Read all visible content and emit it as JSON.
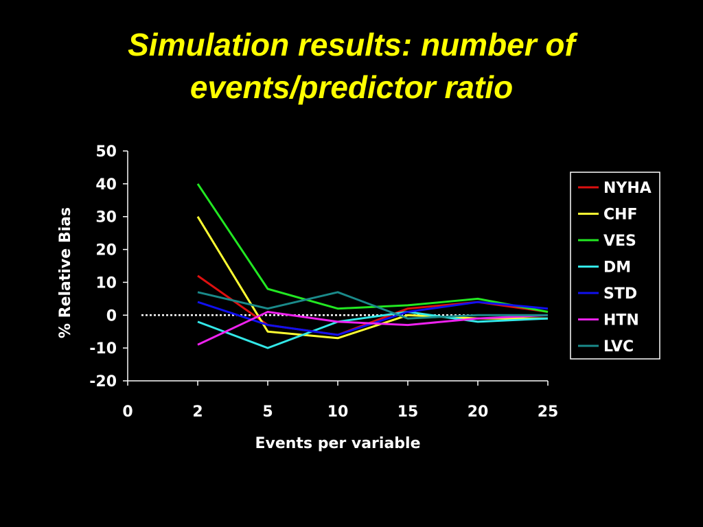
{
  "slide": {
    "title_line1": "Simulation results: number of",
    "title_line2": "events/predictor ratio"
  },
  "chart_data": {
    "type": "line",
    "title": "Simulation results: number of events/predictor ratio",
    "xlabel": "Events per variable",
    "ylabel": "% Relative Bias",
    "categories": [
      "0",
      "2",
      "5",
      "10",
      "15",
      "20",
      "25"
    ],
    "yticks": [
      -20,
      -10,
      0,
      10,
      20,
      30,
      40,
      50
    ],
    "ylim": [
      -20,
      50
    ],
    "grid": false,
    "legend_position": "right",
    "reference_line": {
      "y": 0,
      "style": "dotted",
      "color": "#ffffff"
    },
    "series": [
      {
        "name": "NYHA",
        "color": "#dd1010",
        "values": [
          null,
          12,
          -3,
          -6,
          2,
          4,
          1
        ]
      },
      {
        "name": "CHF",
        "color": "#ffff33",
        "values": [
          null,
          30,
          -5,
          -7,
          0,
          -1,
          -1
        ]
      },
      {
        "name": "VES",
        "color": "#22e822",
        "values": [
          null,
          40,
          8,
          2,
          3,
          5,
          1
        ]
      },
      {
        "name": "DM",
        "color": "#33e8e8",
        "values": [
          null,
          -2,
          -10,
          -2,
          1,
          -2,
          -1
        ]
      },
      {
        "name": "STD",
        "color": "#1010ee",
        "values": [
          null,
          4,
          -3,
          -6,
          1,
          4,
          2
        ]
      },
      {
        "name": "HTN",
        "color": "#ee22ee",
        "values": [
          null,
          -9,
          1,
          -2,
          -3,
          -1,
          0
        ]
      },
      {
        "name": "LVC",
        "color": "#1a8a8a",
        "values": [
          null,
          7,
          2,
          7,
          -1,
          0,
          0
        ]
      }
    ]
  }
}
